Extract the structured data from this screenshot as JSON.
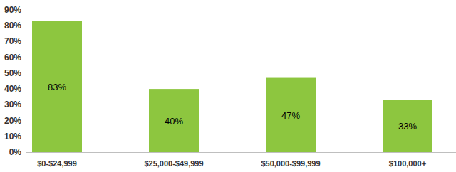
{
  "chart_data": {
    "type": "bar",
    "categories": [
      "$0-$24,999",
      "$25,000-$49,999",
      "$50,000-$99,999",
      "$100,000+"
    ],
    "values": [
      83,
      40,
      47,
      33
    ],
    "value_labels": [
      "83%",
      "40%",
      "47%",
      "33%"
    ],
    "data_labels": true,
    "color": "#8dc63f",
    "ylim": [
      0,
      90
    ],
    "yticks": [
      {
        "value": 0,
        "label": "0%"
      },
      {
        "value": 10,
        "label": "10%"
      },
      {
        "value": 20,
        "label": "20%"
      },
      {
        "value": 30,
        "label": "30%"
      },
      {
        "value": 40,
        "label": "40%"
      },
      {
        "value": 50,
        "label": "50%"
      },
      {
        "value": 60,
        "label": "60%"
      },
      {
        "value": 70,
        "label": "70%"
      },
      {
        "value": 80,
        "label": "80%"
      },
      {
        "value": 90,
        "label": "90%"
      }
    ],
    "grid": false
  }
}
